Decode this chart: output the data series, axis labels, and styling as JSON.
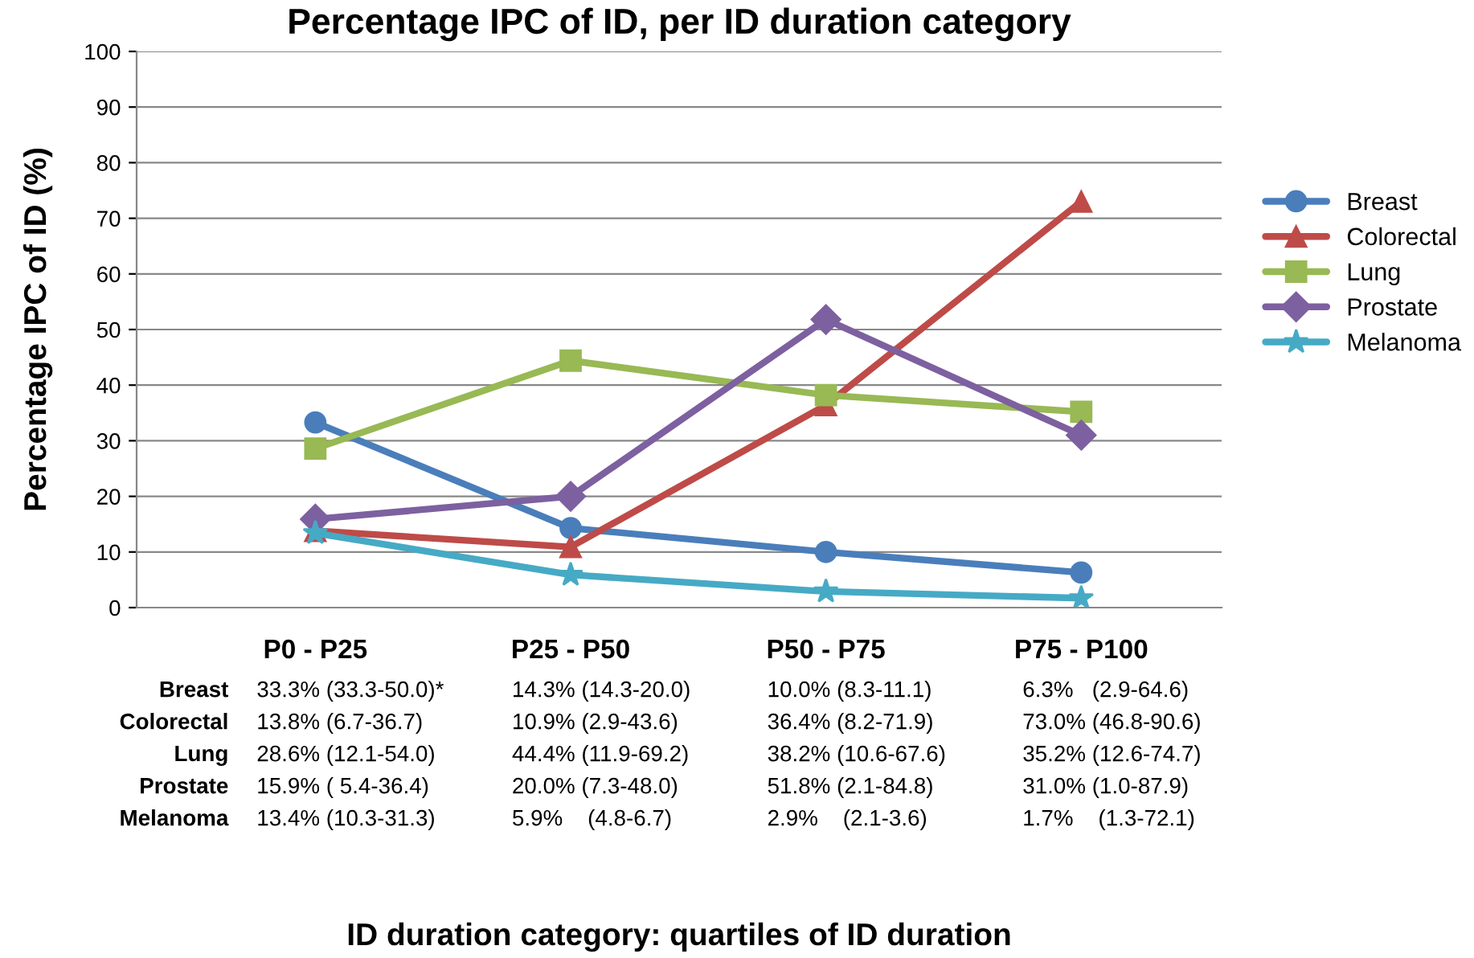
{
  "chart_data": {
    "type": "line",
    "title": "Percentage IPC of ID, per ID duration category",
    "annotations": [
      "ID duration category: quartiles of ID duration"
    ],
    "ylabel": "Percentage IPC of ID (%)",
    "categories": [
      "P0 - P25",
      "P25 - P50",
      "P50 - P75",
      "P75 - P100"
    ],
    "ylim": [
      0,
      100
    ],
    "yticks": [
      0,
      10,
      20,
      30,
      40,
      50,
      60,
      70,
      80,
      90,
      100
    ],
    "grid": "y",
    "legend": "right",
    "series": [
      {
        "name": "Breast",
        "color": "#4a7ebb",
        "marker": "circle",
        "values": [
          33.3,
          14.3,
          10.0,
          6.3
        ],
        "value_labels": [
          "33.3% (33.3-50.0)*",
          "14.3% (14.3-20.0)",
          "10.0% (8.3-11.1)",
          "6.3%   (2.9-64.6)"
        ]
      },
      {
        "name": "Colorectal",
        "color": "#be4b48",
        "marker": "triangle",
        "values": [
          13.8,
          10.9,
          36.4,
          73.0
        ],
        "value_labels": [
          "13.8% (6.7-36.7)",
          "10.9% (2.9-43.6)",
          "36.4% (8.2-71.9)",
          "73.0% (46.8-90.6)"
        ]
      },
      {
        "name": "Lung",
        "color": "#98b954",
        "marker": "square",
        "values": [
          28.6,
          44.4,
          38.2,
          35.2
        ],
        "value_labels": [
          "28.6% (12.1-54.0)",
          "44.4% (11.9-69.2)",
          "38.2% (10.6-67.6)",
          "35.2% (12.6-74.7)"
        ]
      },
      {
        "name": "Prostate",
        "color": "#7d60a0",
        "marker": "diamond",
        "values": [
          15.9,
          20.0,
          51.8,
          31.0
        ],
        "value_labels": [
          "15.9% ( 5.4-36.4)",
          "20.0% (7.3-48.0)",
          "51.8% (2.1-84.8)",
          "31.0% (1.0-87.9)"
        ]
      },
      {
        "name": "Melanoma",
        "color": "#46aac5",
        "marker": "star",
        "values": [
          13.4,
          5.9,
          2.9,
          1.7
        ],
        "value_labels": [
          "13.4% (10.3-31.3)",
          "5.9%    (4.8-6.7)",
          "2.9%    (2.1-3.6)",
          "1.7%    (1.3-72.1)"
        ]
      }
    ]
  }
}
